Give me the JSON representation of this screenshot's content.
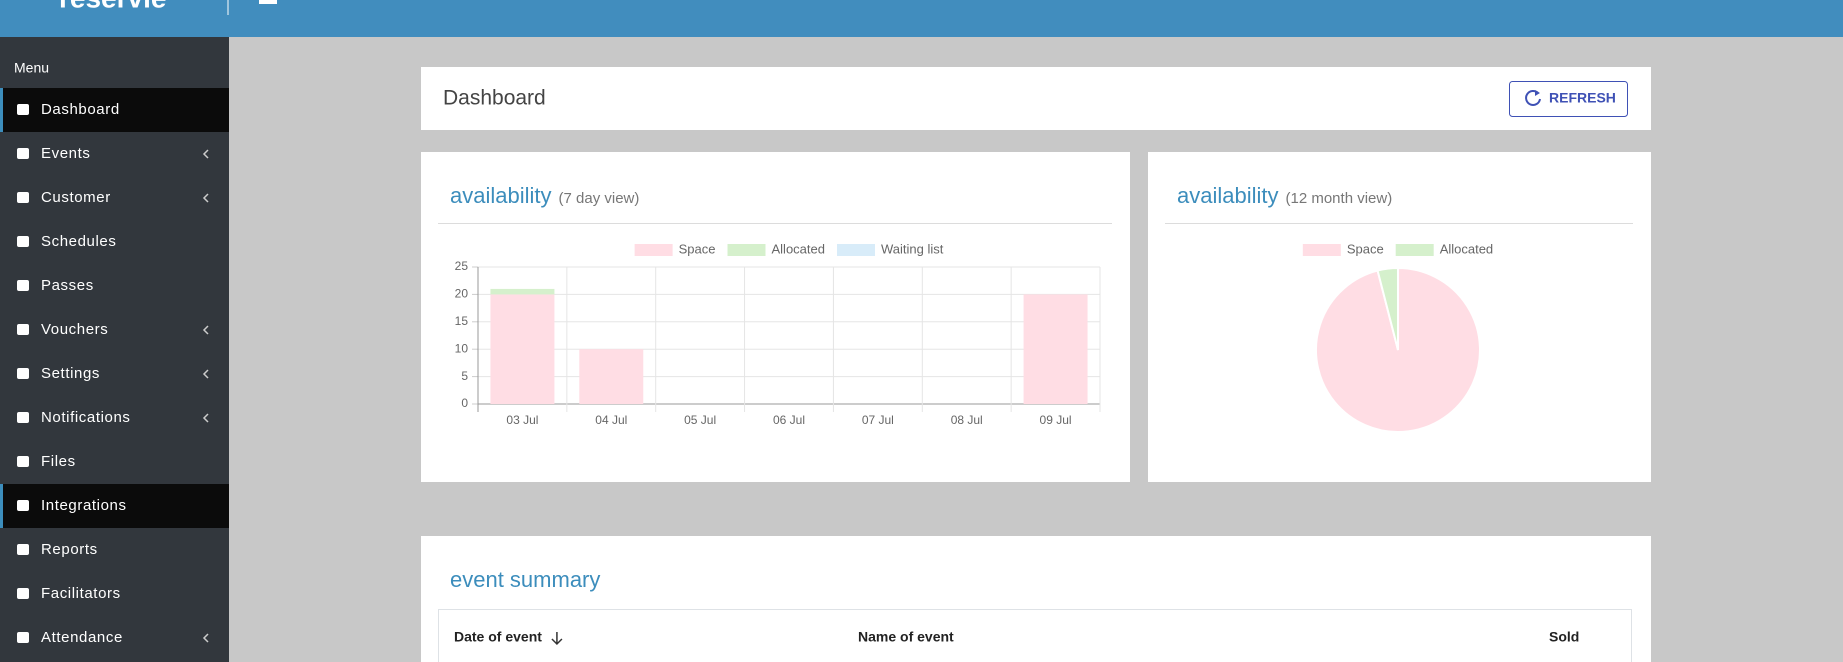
{
  "header": {
    "brand": "reservie"
  },
  "sidebar": {
    "heading": "Menu",
    "items": [
      {
        "label": "Dashboard",
        "active": true,
        "submenu": false
      },
      {
        "label": "Events",
        "active": false,
        "submenu": true
      },
      {
        "label": "Customer",
        "active": false,
        "submenu": true
      },
      {
        "label": "Schedules",
        "active": false,
        "submenu": false
      },
      {
        "label": "Passes",
        "active": false,
        "submenu": false
      },
      {
        "label": "Vouchers",
        "active": false,
        "submenu": true
      },
      {
        "label": "Settings",
        "active": false,
        "submenu": true
      },
      {
        "label": "Notifications",
        "active": false,
        "submenu": true
      },
      {
        "label": "Files",
        "active": false,
        "submenu": false
      },
      {
        "label": "Integrations",
        "active": true,
        "submenu": false
      },
      {
        "label": "Reports",
        "active": false,
        "submenu": false
      },
      {
        "label": "Facilitators",
        "active": false,
        "submenu": false
      },
      {
        "label": "Attendance",
        "active": false,
        "submenu": true
      }
    ]
  },
  "page_title": "Dashboard",
  "refresh_button": "REFRESH",
  "chart_data": [
    {
      "type": "bar",
      "title": "availability",
      "subtitle": "(7 day view)",
      "stacked": true,
      "grid": true,
      "legend": "top",
      "categories": [
        "03 Jul",
        "04 Jul",
        "05 Jul",
        "06 Jul",
        "07 Jul",
        "08 Jul",
        "09 Jul"
      ],
      "series": [
        {
          "name": "Space",
          "color": "#ffdde4",
          "values": [
            20,
            10,
            0,
            0,
            0,
            0,
            20
          ]
        },
        {
          "name": "Allocated",
          "color": "#d5f0cc",
          "values": [
            1,
            0,
            0,
            0,
            0,
            0,
            0
          ]
        },
        {
          "name": "Waiting list",
          "color": "#d8ecf9",
          "values": [
            0,
            0,
            0,
            0,
            0,
            0,
            0
          ]
        }
      ],
      "ylim": [
        0,
        25
      ],
      "yticks": [
        0,
        5,
        10,
        15,
        20,
        25
      ]
    },
    {
      "type": "pie",
      "title": "availability",
      "subtitle": "(12 month view)",
      "legend": "top",
      "categories": [
        "Space",
        "Allocated"
      ],
      "values": [
        96,
        4
      ],
      "colors": [
        "#ffdde4",
        "#d5f0cc"
      ]
    }
  ],
  "event_summary": {
    "title": "event summary",
    "columns": [
      "Date of event",
      "Name of event",
      "Sold"
    ]
  }
}
